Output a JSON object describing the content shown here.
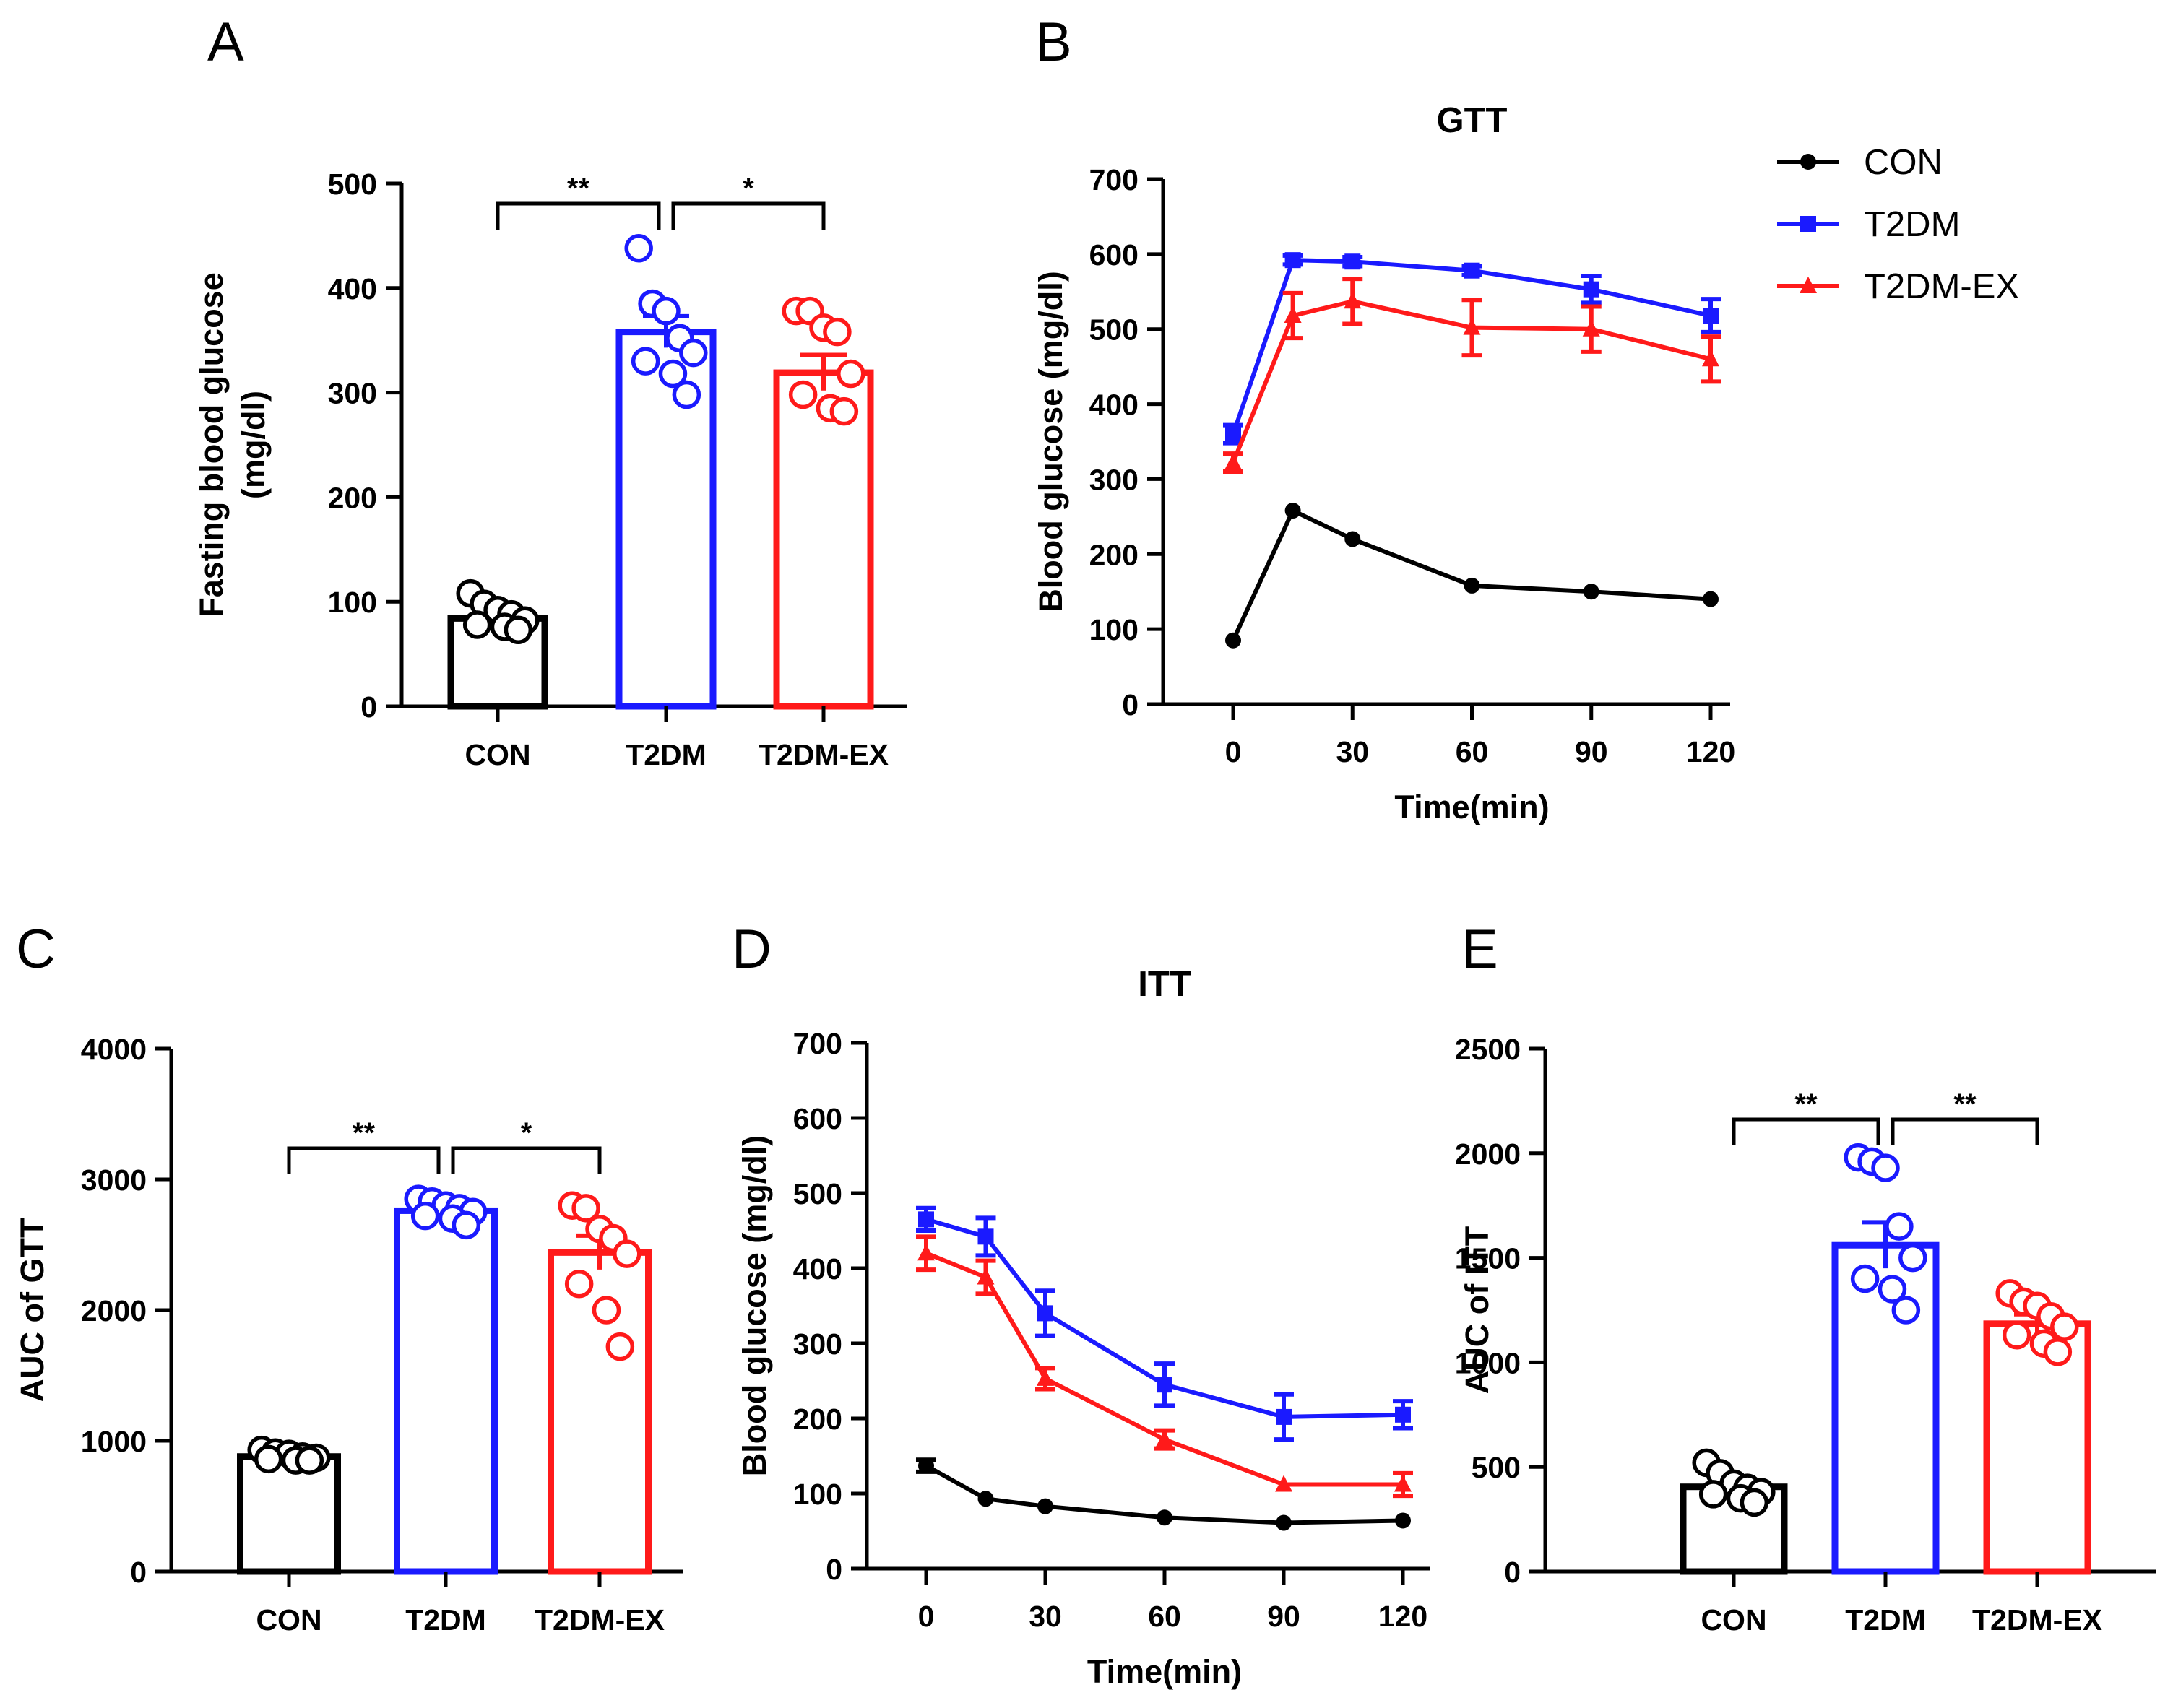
{
  "colors": {
    "CON": "#000000",
    "T2DM": "#1a1aff",
    "T2DM-EX": "#ff1a1a"
  },
  "panels": {
    "A": {
      "label": "A"
    },
    "B": {
      "label": "B"
    },
    "C": {
      "label": "C"
    },
    "D": {
      "label": "D"
    },
    "E": {
      "label": "E"
    }
  },
  "legend": {
    "items": [
      "CON",
      "T2DM",
      "T2DM-EX"
    ],
    "position": "top-right"
  },
  "chart_data": [
    {
      "id": "A",
      "type": "bar",
      "title": "",
      "ylabel_line1": "Fasting blood glucose",
      "ylabel_line2": "(mg/dl)",
      "xlabel": "",
      "ylim": [
        0,
        500
      ],
      "yticks": [
        0,
        100,
        200,
        300,
        400,
        500
      ],
      "categories": [
        "CON",
        "T2DM",
        "T2DM-EX"
      ],
      "values": [
        84,
        358,
        319
      ],
      "errors": [
        5,
        15,
        17
      ],
      "points": [
        [
          108,
          98,
          92,
          88,
          82,
          78,
          76,
          73
        ],
        [
          438,
          385,
          378,
          352,
          338,
          330,
          318,
          298
        ],
        [
          378,
          378,
          362,
          358,
          318,
          298,
          285,
          282
        ]
      ],
      "significance": [
        {
          "from": 0,
          "to": 1,
          "label": "**"
        },
        {
          "from": 1,
          "to": 2,
          "label": "*"
        }
      ]
    },
    {
      "id": "B",
      "type": "line",
      "title": "GTT",
      "ylabel": "Blood glucose (mg/dl)",
      "xlabel": "Time(min)",
      "xlim": [
        0,
        120
      ],
      "ylim": [
        0,
        700
      ],
      "xticks": [
        0,
        30,
        60,
        90,
        120
      ],
      "yticks": [
        0,
        100,
        200,
        300,
        400,
        500,
        600,
        700
      ],
      "x": [
        0,
        15,
        30,
        60,
        90,
        120
      ],
      "series": [
        {
          "name": "CON",
          "values": [
            85,
            258,
            220,
            158,
            150,
            140
          ],
          "errors": [
            0,
            0,
            0,
            0,
            0,
            0
          ],
          "marker": "circle"
        },
        {
          "name": "T2DM",
          "values": [
            360,
            592,
            590,
            578,
            553,
            518
          ],
          "errors": [
            12,
            6,
            6,
            6,
            18,
            22
          ],
          "marker": "square"
        },
        {
          "name": "T2DM-EX",
          "values": [
            322,
            518,
            537,
            502,
            500,
            460
          ],
          "errors": [
            12,
            30,
            30,
            37,
            30,
            30
          ],
          "marker": "triangle"
        }
      ]
    },
    {
      "id": "C",
      "type": "bar",
      "title": "",
      "ylabel": "AUC of GTT",
      "xlabel": "",
      "ylim": [
        0,
        4000
      ],
      "yticks": [
        0,
        1000,
        2000,
        3000,
        4000
      ],
      "categories": [
        "CON",
        "T2DM",
        "T2DM-EX"
      ],
      "values": [
        880,
        2760,
        2440
      ],
      "errors": [
        30,
        50,
        130
      ],
      "points": [
        [
          930,
          910,
          900,
          880,
          870,
          860,
          850,
          850
        ],
        [
          2850,
          2830,
          2800,
          2780,
          2750,
          2720,
          2700,
          2650
        ],
        [
          2800,
          2780,
          2620,
          2550,
          2430,
          2200,
          2000,
          1720
        ]
      ],
      "significance": [
        {
          "from": 0,
          "to": 1,
          "label": "**"
        },
        {
          "from": 1,
          "to": 2,
          "label": "*"
        }
      ]
    },
    {
      "id": "D",
      "type": "line",
      "title": "ITT",
      "ylabel": "Blood glucose (mg/dl)",
      "xlabel": "Time(min)",
      "xlim": [
        0,
        120
      ],
      "ylim": [
        0,
        700
      ],
      "xticks": [
        0,
        30,
        60,
        90,
        120
      ],
      "yticks": [
        0,
        100,
        200,
        300,
        400,
        500,
        600,
        700
      ],
      "x": [
        0,
        15,
        30,
        60,
        90,
        120
      ],
      "series": [
        {
          "name": "CON",
          "values": [
            137,
            93,
            83,
            68,
            61,
            64
          ],
          "errors": [
            8,
            0,
            0,
            0,
            0,
            0
          ],
          "marker": "circle"
        },
        {
          "name": "T2DM",
          "values": [
            465,
            442,
            340,
            245,
            202,
            205
          ],
          "errors": [
            15,
            25,
            30,
            28,
            30,
            18
          ],
          "marker": "square"
        },
        {
          "name": "T2DM-EX",
          "values": [
            420,
            388,
            253,
            172,
            112,
            112
          ],
          "errors": [
            22,
            22,
            14,
            12,
            0,
            15
          ],
          "marker": "triangle"
        }
      ]
    },
    {
      "id": "E",
      "type": "bar",
      "title": "",
      "ylabel": "AUC of ITT",
      "xlabel": "",
      "ylim": [
        0,
        2500
      ],
      "yticks": [
        0,
        500,
        1000,
        1500,
        2000,
        2500
      ],
      "categories": [
        "CON",
        "T2DM",
        "T2DM-EX"
      ],
      "values": [
        405,
        1560,
        1185
      ],
      "errors": [
        25,
        110,
        45
      ],
      "points": [
        [
          520,
          470,
          420,
          400,
          380,
          370,
          350,
          330
        ],
        [
          1980,
          1960,
          1930,
          1650,
          1500,
          1400,
          1350,
          1250
        ],
        [
          1330,
          1290,
          1270,
          1220,
          1170,
          1130,
          1090,
          1050
        ]
      ],
      "significance": [
        {
          "from": 0,
          "to": 1,
          "label": "**"
        },
        {
          "from": 1,
          "to": 2,
          "label": "**"
        }
      ]
    }
  ]
}
